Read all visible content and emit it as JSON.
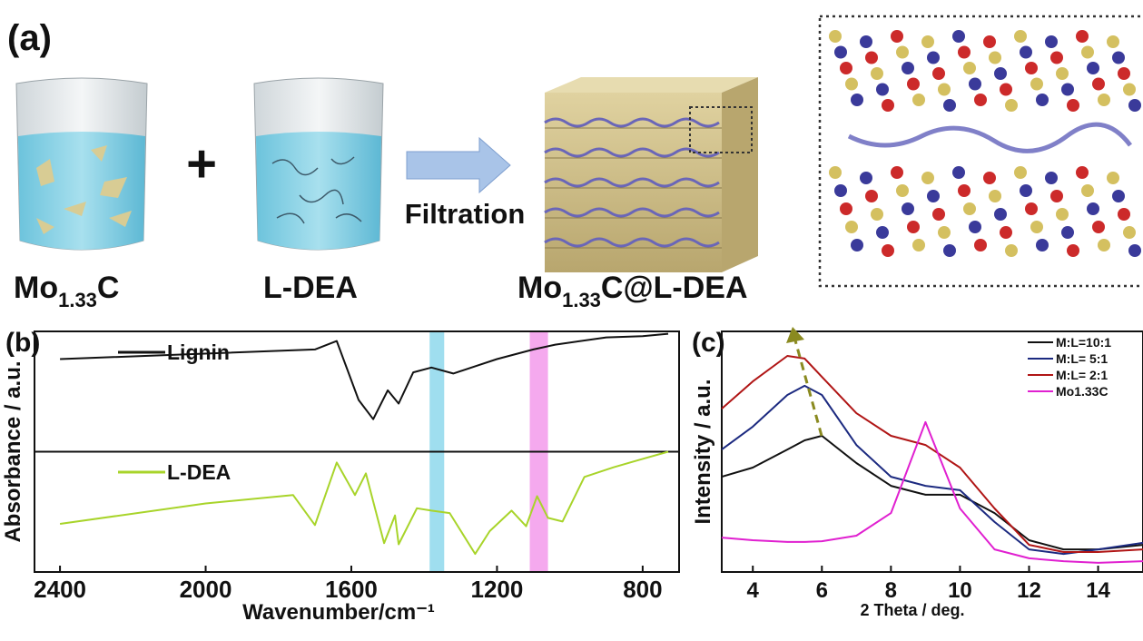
{
  "panel_a": {
    "label": "(a)",
    "plus": "+",
    "arrow_label": "Filtration",
    "items": [
      {
        "main": "Mo",
        "sub": "1.33",
        "rest": "C"
      },
      {
        "main": "L-DEA"
      },
      {
        "main": "Mo",
        "sub": "1.33",
        "rest": "C@L-DEA"
      }
    ]
  },
  "chart_data": [
    {
      "type": "line",
      "panel_label": "(b)",
      "x_label": "Wavenumber/cm⁻¹",
      "y_label": "Absorbance / a.u.",
      "xlim": [
        2470,
        700
      ],
      "xticks": [
        2400,
        2000,
        1600,
        1200,
        800
      ],
      "ylim": [
        0,
        2
      ],
      "divider": 1,
      "bands": [
        {
          "from": 1385,
          "to": 1345,
          "color": "#7fd3ea"
        },
        {
          "from": 1110,
          "to": 1060,
          "color": "#f28ce8"
        }
      ],
      "series": [
        {
          "name": "Lignin",
          "color": "#111111",
          "x": [
            2400,
            1700,
            1640,
            1580,
            1540,
            1500,
            1470,
            1430,
            1380,
            1320,
            1260,
            1200,
            1100,
            1040,
            900,
            800,
            730
          ],
          "values": [
            1.77,
            1.85,
            1.92,
            1.43,
            1.27,
            1.51,
            1.4,
            1.66,
            1.7,
            1.65,
            1.71,
            1.77,
            1.85,
            1.89,
            1.95,
            1.96,
            1.98
          ]
        },
        {
          "name": "L-DEA",
          "color": "#a8d42a",
          "x": [
            2400,
            2000,
            1760,
            1700,
            1640,
            1590,
            1560,
            1510,
            1480,
            1470,
            1420,
            1380,
            1330,
            1260,
            1220,
            1160,
            1120,
            1090,
            1060,
            1020,
            960,
            880,
            800,
            730
          ],
          "values": [
            0.4,
            0.57,
            0.64,
            0.39,
            0.91,
            0.64,
            0.82,
            0.24,
            0.47,
            0.23,
            0.53,
            0.51,
            0.49,
            0.15,
            0.34,
            0.51,
            0.38,
            0.63,
            0.45,
            0.42,
            0.79,
            0.87,
            0.94,
            1.0
          ]
        }
      ]
    },
    {
      "type": "line",
      "panel_label": "(c)",
      "x_label": "2 Theta / deg.",
      "y_label": "Intensity / a.u.",
      "xlim": [
        3.1,
        15.3
      ],
      "xticks": [
        4,
        6,
        8,
        10,
        12,
        14
      ],
      "ylim": [
        0,
        10
      ],
      "legend": "upper right",
      "x": [
        3.1,
        4,
        5,
        5.5,
        6,
        7,
        8,
        9,
        10,
        11,
        12,
        13,
        14,
        15.3
      ],
      "series": [
        {
          "name": "M:L=10:1",
          "color": "#111111",
          "values": [
            3.96,
            4.34,
            5.09,
            5.47,
            5.66,
            4.53,
            3.58,
            3.21,
            3.21,
            2.45,
            1.32,
            0.94,
            0.94,
            1.13
          ]
        },
        {
          "name": "M:L= 5:1",
          "color": "#1c2a80",
          "values": [
            5.09,
            6.04,
            7.36,
            7.74,
            7.36,
            5.28,
            3.96,
            3.58,
            3.4,
            2.08,
            0.94,
            0.75,
            0.94,
            1.21
          ]
        },
        {
          "name": "M:L= 2:1",
          "color": "#b01515",
          "values": [
            6.79,
            7.92,
            8.98,
            8.87,
            8.11,
            6.6,
            5.66,
            5.28,
            4.34,
            2.64,
            1.13,
            0.83,
            0.83,
            0.94
          ]
        },
        {
          "name": "Mo1.33C",
          "color": "#e020d0",
          "values": [
            1.43,
            1.32,
            1.25,
            1.25,
            1.28,
            1.51,
            2.45,
            6.23,
            2.64,
            0.94,
            0.57,
            0.45,
            0.38,
            0.45
          ]
        }
      ]
    }
  ]
}
